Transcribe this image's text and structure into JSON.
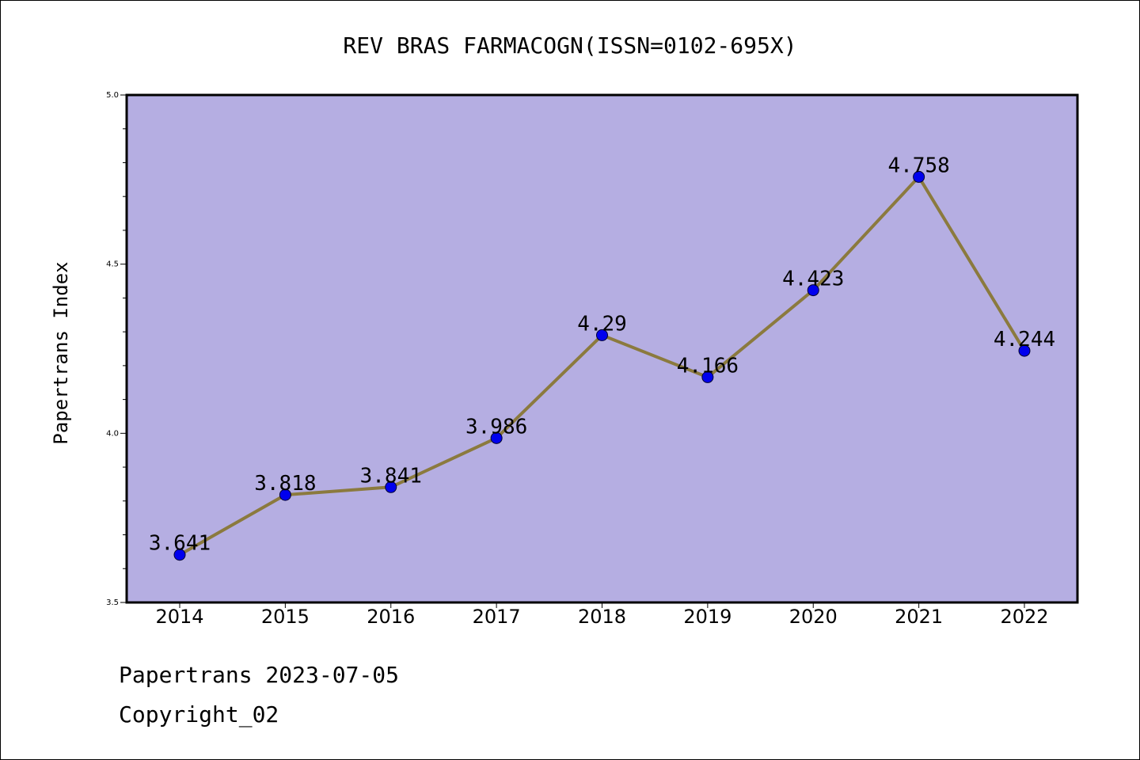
{
  "chart_data": {
    "type": "line",
    "title": "REV BRAS FARMACOGN(ISSN=0102-695X)",
    "xlabel": "",
    "ylabel": "Papertrans Index",
    "categories": [
      "2014",
      "2015",
      "2016",
      "2017",
      "2018",
      "2019",
      "2020",
      "2021",
      "2022"
    ],
    "values": [
      3.641,
      3.818,
      3.841,
      3.986,
      4.29,
      4.166,
      4.423,
      4.758,
      4.244
    ],
    "data_labels": [
      "3.641",
      "3.818",
      "3.841",
      "3.986",
      "4.29",
      "4.166",
      "4.423",
      "4.758",
      "4.244"
    ],
    "ylim": [
      3.5,
      5.0
    ],
    "yticks": [
      "3.5",
      "4.0",
      "4.5",
      "5.0"
    ],
    "grid": false,
    "colors": {
      "plot_background": "#b5aee2",
      "line": "#8b7a3e",
      "marker": "#0000ee"
    }
  },
  "footer": {
    "date_text": "Papertrans 2023-07-05",
    "copyright_text": "Copyright_02"
  }
}
